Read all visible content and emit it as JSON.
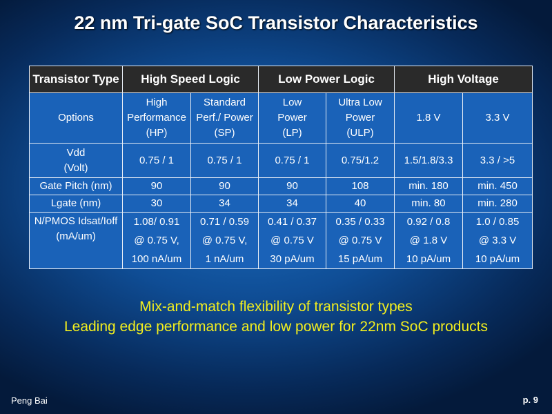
{
  "title": "22 nm Tri-gate SoC Transistor Characteristics",
  "table": {
    "corner": "Transistor Type",
    "options_label": "Options",
    "groups": [
      {
        "name": "High Speed Logic",
        "options": [
          [
            "High",
            "Performance",
            "(HP)"
          ],
          [
            "Standard",
            "Perf./ Power",
            "(SP)"
          ]
        ]
      },
      {
        "name": "Low Power Logic",
        "options": [
          [
            "Low",
            "Power",
            "(LP)"
          ],
          [
            "Ultra Low",
            "Power",
            "(ULP)"
          ]
        ]
      },
      {
        "name": "High Voltage",
        "options": [
          [
            "1.8 V"
          ],
          [
            "3.3 V"
          ]
        ]
      }
    ],
    "rows": [
      {
        "label": [
          "Vdd",
          "(Volt)"
        ],
        "values": [
          "0.75 / 1",
          "0.75 / 1",
          "0.75 / 1",
          "0.75/1.2",
          "1.5/1.8/3.3",
          "3.3 / >5"
        ]
      },
      {
        "label": [
          "Gate Pitch (nm)"
        ],
        "values": [
          90,
          90,
          90,
          108,
          "min. 180",
          "min. 450"
        ]
      },
      {
        "label": [
          "Lgate (nm)"
        ],
        "values": [
          30,
          34,
          34,
          40,
          "min. 80",
          "min. 280"
        ]
      },
      {
        "label": [
          "N/PMOS Idsat/Ioff",
          "(mA/um)"
        ],
        "values": [
          [
            "1.08/ 0.91",
            "@ 0.75 V,",
            "100 nA/um"
          ],
          [
            "0.71 / 0.59",
            "@ 0.75 V,",
            "1 nA/um"
          ],
          [
            "0.41 / 0.37",
            "@ 0.75 V",
            "30 pA/um"
          ],
          [
            "0.35 / 0.33",
            "@ 0.75 V",
            "15 pA/um"
          ],
          [
            "0.92 / 0.8",
            "@ 1.8 V",
            "10 pA/um"
          ],
          [
            "1.0 / 0.85",
            "@ 3.3 V",
            "10 pA/um"
          ]
        ]
      }
    ]
  },
  "highlights": [
    "Mix-and-match flexibility of transistor types",
    "Leading edge performance and low power for 22nm SoC products"
  ],
  "footer": {
    "author": "Peng Bai",
    "page": "p. 9"
  }
}
